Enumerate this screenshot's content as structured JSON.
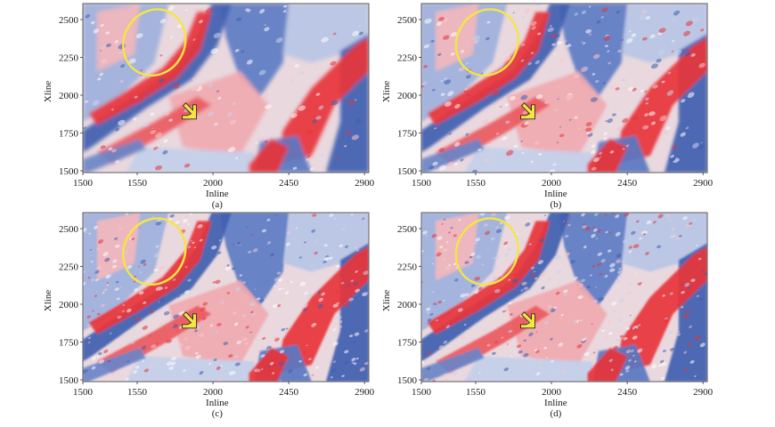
{
  "figure": {
    "axes": {
      "x_title": "Inline",
      "y_title": "Xline",
      "x_ticks": [
        "1500",
        "1550",
        "2000",
        "2450",
        "2900"
      ],
      "y_ticks": [
        "2500",
        "2250",
        "2000",
        "1750",
        "1500"
      ]
    },
    "colors": {
      "red": "#e8343a",
      "blue": "#3f5fb0",
      "highlight": "#f5e642",
      "frame": "#5a5a5a"
    },
    "annotations": {
      "ellipse": "yellow-ellipse",
      "arrow": "yellow-arrow"
    },
    "panels": [
      {
        "id": "a",
        "label": "(a)"
      },
      {
        "id": "b",
        "label": "(b)"
      },
      {
        "id": "c",
        "label": "(c)"
      },
      {
        "id": "d",
        "label": "(d)"
      }
    ]
  }
}
